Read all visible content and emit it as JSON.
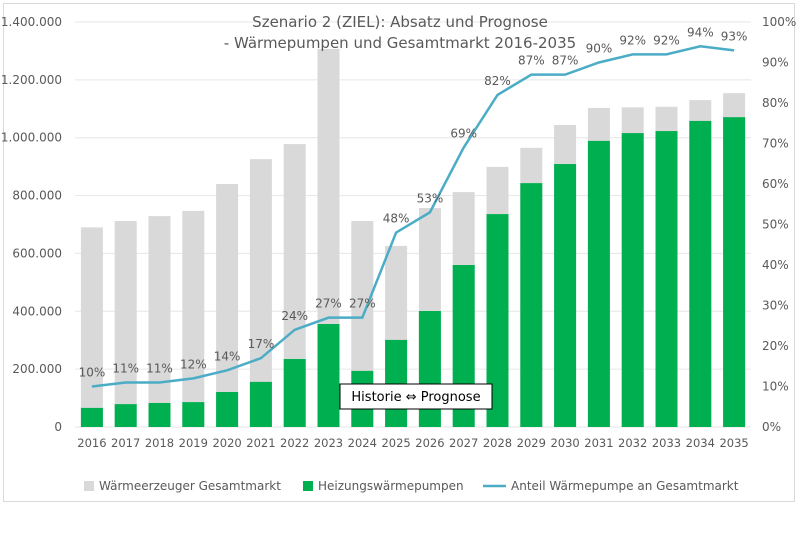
{
  "chart_data": {
    "type": "bar",
    "title_line1": "Szenario 2 (ZIEL): Absatz und Prognose",
    "title_line2": "- Wärmepumpen und Gesamtmarkt 2016-2035",
    "categories": [
      "2016",
      "2017",
      "2018",
      "2019",
      "2020",
      "2021",
      "2022",
      "2023",
      "2024",
      "2025",
      "2026",
      "2027",
      "2028",
      "2029",
      "2030",
      "2031",
      "2032",
      "2033",
      "2034",
      "2035"
    ],
    "series": [
      {
        "name": "Wärmeerzeuger Gesamtmarkt",
        "type": "bar",
        "color": "#d9d9d9",
        "values": [
          690000,
          712000,
          729000,
          747000,
          840000,
          926000,
          978000,
          1307000,
          712000,
          626000,
          757000,
          812000,
          899000,
          965000,
          1044000,
          1103000,
          1105000,
          1107000,
          1130000,
          1154000
        ]
      },
      {
        "name": "Heizungswärmepumpen",
        "type": "bar",
        "color": "#00b050",
        "values": [
          66000,
          79000,
          83000,
          86000,
          121000,
          156000,
          235000,
          356000,
          194000,
          301000,
          401000,
          560000,
          736000,
          843000,
          909000,
          989000,
          1016000,
          1023000,
          1058000,
          1071000
        ]
      },
      {
        "name": "Anteil Wärmepumpe an Gesamtmarkt",
        "type": "line",
        "axis": "right",
        "color": "#4bacc6",
        "values": [
          10,
          11,
          11,
          12,
          14,
          17,
          24,
          27,
          27,
          48,
          53,
          69,
          82,
          87,
          87,
          90,
          92,
          92,
          94,
          93
        ],
        "labels": [
          "10%",
          "11%",
          "11%",
          "12%",
          "14%",
          "17%",
          "24%",
          "27%",
          "27%",
          "48%",
          "53%",
          "69%",
          "82%",
          "87%",
          "87%",
          "90%",
          "92%",
          "92%",
          "94%",
          "93%"
        ]
      }
    ],
    "ylim": [
      0,
      1400000
    ],
    "yticks": [
      "0",
      "200.000",
      "400.000",
      "600.000",
      "800.000",
      "1.000.000",
      "1.200.000",
      "1.400.000"
    ],
    "y2lim": [
      0,
      100
    ],
    "y2ticks": [
      "0%",
      "10%",
      "20%",
      "30%",
      "40%",
      "50%",
      "60%",
      "70%",
      "80%",
      "90%",
      "100%"
    ],
    "grid": true,
    "legend_position": "bottom",
    "annotation": "Historie ⇔ Prognose"
  }
}
